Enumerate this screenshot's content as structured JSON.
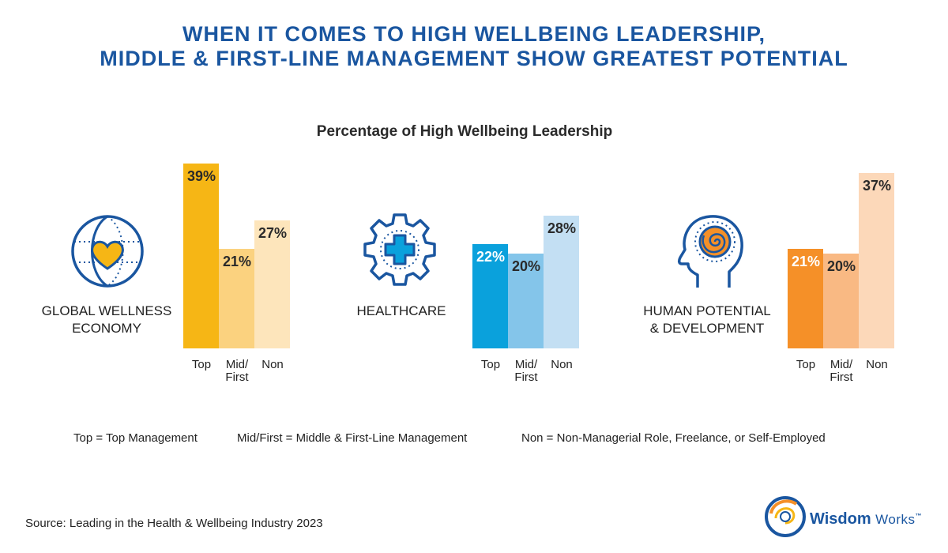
{
  "title": {
    "line1": "WHEN IT COMES TO HIGH WELLBEING LEADERSHIP,",
    "line2": "MIDDLE & FIRST-LINE MANAGEMENT SHOW GREATEST POTENTIAL"
  },
  "chart_data": [
    {
      "type": "bar",
      "title": "Percentage of High Wellbeing Leadership",
      "group_label": [
        "GLOBAL WELLNESS",
        "ECONOMY"
      ],
      "categories": [
        "Top",
        "Mid/First",
        "Non"
      ],
      "category_lines": [
        [
          "Top"
        ],
        [
          "Mid/",
          "First"
        ],
        [
          "Non"
        ]
      ],
      "values": [
        39,
        21,
        27
      ],
      "value_labels": [
        "39%",
        "21%",
        "27%"
      ],
      "colors": [
        "#f6b615",
        "#fbd27f",
        "#fde5bb"
      ],
      "icon": "globe-heart-icon",
      "ylim": [
        0,
        40
      ]
    },
    {
      "type": "bar",
      "group_label": [
        "HEALTHCARE"
      ],
      "categories": [
        "Top",
        "Mid/First",
        "Non"
      ],
      "category_lines": [
        [
          "Top"
        ],
        [
          "Mid/",
          "First"
        ],
        [
          "Non"
        ]
      ],
      "values": [
        22,
        20,
        28
      ],
      "value_labels": [
        "22%",
        "20%",
        "28%"
      ],
      "colors": [
        "#0aa1dc",
        "#84c5ea",
        "#c3dff3"
      ],
      "icon": "gear-medical-cross-icon",
      "ylim": [
        0,
        40
      ]
    },
    {
      "type": "bar",
      "group_label": [
        "HUMAN POTENTIAL",
        "& DEVELOPMENT"
      ],
      "categories": [
        "Top",
        "Mid/First",
        "Non"
      ],
      "category_lines": [
        [
          "Top"
        ],
        [
          "Mid/",
          "First"
        ],
        [
          "Non"
        ]
      ],
      "values": [
        21,
        20,
        37
      ],
      "value_labels": [
        "21%",
        "20%",
        "37%"
      ],
      "colors": [
        "#f59028",
        "#f9b983",
        "#fcd8b9"
      ],
      "icon": "head-spiral-icon",
      "ylim": [
        0,
        40
      ]
    }
  ],
  "legend": {
    "top": "Top = Top Management",
    "mid": "Mid/First = Middle & First-Line Management",
    "non": "Non = Non-Managerial Role, Freelance, or Self-Employed"
  },
  "source": "Source: Leading in the Health & Wellbeing Industry 2023",
  "logo": {
    "word1": "Wisdom",
    "word2": "Works",
    "mark": "™",
    "icon": "wisdom-works-swirl-icon"
  }
}
